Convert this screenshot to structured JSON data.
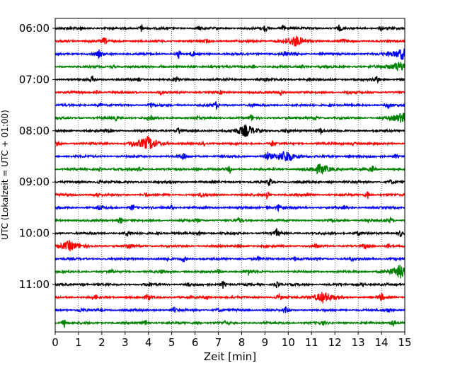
{
  "chart_data": {
    "type": "line",
    "title": "",
    "xlabel": "Zeit  [min]",
    "ylabel": "UTC (Lokalzeit = UTC + 01:00)",
    "xlim": [
      0,
      15
    ],
    "x_ticks": [
      "0",
      "1",
      "2",
      "3",
      "4",
      "5",
      "6",
      "7",
      "8",
      "9",
      "10",
      "11",
      "12",
      "13",
      "14",
      "15"
    ],
    "y_ticks": [
      {
        "label": "06:00",
        "trace": 0
      },
      {
        "label": "07:00",
        "trace": 4
      },
      {
        "label": "08:00",
        "trace": 8
      },
      {
        "label": "09:00",
        "trace": 12
      },
      {
        "label": "10:00",
        "trace": 16
      },
      {
        "label": "11:00",
        "trace": 20
      }
    ],
    "grid": "vertical dotted",
    "trace_interval_min": 15,
    "trace_count": 24,
    "colors": [
      "#000000",
      "#ff0000",
      "#0000ff",
      "#008000"
    ],
    "events": [
      [
        [
          3.7,
          1.0
        ],
        [
          9.0,
          1.0
        ],
        [
          9.8,
          1.2
        ],
        [
          12.2,
          0.9
        ],
        [
          1.1,
          0.5
        ],
        [
          6.2,
          0.5
        ],
        [
          14.0,
          0.6
        ]
      ],
      [
        [
          2.1,
          0.9
        ],
        [
          10.3,
          1.3
        ],
        [
          12.4,
          0.5
        ],
        [
          1.5,
          0.5
        ],
        [
          6.5,
          0.4
        ]
      ],
      [
        [
          1.9,
          1.1
        ],
        [
          5.3,
          1.2
        ],
        [
          5.9,
          0.8
        ],
        [
          9.8,
          0.8
        ],
        [
          14.9,
          1.5
        ],
        [
          10.2,
          0.5
        ]
      ],
      [
        [
          2.5,
          0.5
        ],
        [
          4.6,
          0.5
        ],
        [
          6.7,
          0.5
        ],
        [
          10.6,
          0.5
        ],
        [
          14.8,
          1.4
        ],
        [
          8.5,
          0.4
        ]
      ],
      [
        [
          1.6,
          0.9
        ],
        [
          5.2,
          0.6
        ],
        [
          9.0,
          0.6
        ],
        [
          13.8,
          1.1
        ],
        [
          3.6,
          0.4
        ],
        [
          10.9,
          0.4
        ]
      ],
      [
        [
          1.8,
          0.5
        ],
        [
          4.5,
          0.5
        ],
        [
          9.7,
          0.9
        ],
        [
          12.6,
          0.6
        ],
        [
          7.1,
          0.4
        ]
      ],
      [
        [
          1.9,
          0.5
        ],
        [
          4.1,
          0.9
        ],
        [
          6.9,
          0.9
        ],
        [
          8.5,
          0.5
        ],
        [
          11.8,
          0.5
        ],
        [
          14.3,
          0.8
        ]
      ],
      [
        [
          2.6,
          0.5
        ],
        [
          4.1,
          0.9
        ],
        [
          8.4,
          0.8
        ],
        [
          11.2,
          0.5
        ],
        [
          14.9,
          1.3
        ],
        [
          6.1,
          0.4
        ]
      ],
      [
        [
          5.3,
          1.1
        ],
        [
          8.2,
          1.5
        ],
        [
          11.4,
          0.9
        ],
        [
          2.3,
          0.4
        ],
        [
          9.9,
          0.4
        ]
      ],
      [
        [
          0.1,
          1.1
        ],
        [
          4.0,
          1.8
        ],
        [
          9.3,
          0.9
        ],
        [
          12.8,
          0.5
        ],
        [
          3.3,
          0.5
        ],
        [
          6.4,
          0.4
        ]
      ],
      [
        [
          5.5,
          1.1
        ],
        [
          9.1,
          1.1
        ],
        [
          9.9,
          1.6
        ],
        [
          12.6,
          0.6
        ],
        [
          14.6,
          0.6
        ]
      ],
      [
        [
          3.6,
          1.0
        ],
        [
          7.5,
          0.9
        ],
        [
          11.4,
          1.3
        ],
        [
          13.6,
          1.0
        ],
        [
          1.9,
          0.4
        ],
        [
          6.1,
          0.4
        ]
      ],
      [
        [
          1.9,
          0.5
        ],
        [
          9.2,
          1.1
        ],
        [
          11.8,
          0.6
        ],
        [
          14.4,
          0.6
        ],
        [
          4.9,
          0.4
        ]
      ],
      [
        [
          1.8,
          0.9
        ],
        [
          3.9,
          0.6
        ],
        [
          6.3,
          0.6
        ],
        [
          9.1,
          1.2
        ],
        [
          13.4,
          1.2
        ],
        [
          10.8,
          0.5
        ]
      ],
      [
        [
          1.9,
          0.8
        ],
        [
          3.3,
          0.9
        ],
        [
          5.0,
          0.6
        ],
        [
          9.6,
          1.2
        ],
        [
          12.4,
          0.5
        ],
        [
          9.1,
          0.5
        ]
      ],
      [
        [
          2.8,
          1.0
        ],
        [
          6.1,
          0.5
        ],
        [
          7.9,
          0.6
        ],
        [
          11.8,
          0.5
        ],
        [
          13.4,
          0.6
        ],
        [
          14.4,
          0.8
        ]
      ],
      [
        [
          3.1,
          0.8
        ],
        [
          4.4,
          0.5
        ],
        [
          6.2,
          0.7
        ],
        [
          9.5,
          1.1
        ],
        [
          13.0,
          0.6
        ],
        [
          14.8,
          1.0
        ]
      ],
      [
        [
          0.6,
          1.3
        ],
        [
          3.2,
          0.9
        ],
        [
          7.9,
          0.5
        ],
        [
          11.2,
          0.5
        ],
        [
          13.3,
          0.5
        ],
        [
          14.3,
          0.8
        ]
      ],
      [
        [
          4.8,
          0.6
        ],
        [
          5.5,
          1.0
        ],
        [
          8.7,
          0.5
        ],
        [
          10.3,
          0.6
        ],
        [
          12.7,
          0.5
        ]
      ],
      [
        [
          2.4,
          0.5
        ],
        [
          4.6,
          0.6
        ],
        [
          7.0,
          0.5
        ],
        [
          8.3,
          0.9
        ],
        [
          14.8,
          1.6
        ]
      ],
      [
        [
          4.0,
          0.6
        ],
        [
          5.7,
          0.5
        ],
        [
          7.2,
          1.1
        ],
        [
          9.5,
          0.8
        ],
        [
          13.2,
          0.6
        ],
        [
          1.2,
          0.4
        ]
      ],
      [
        [
          1.7,
          0.5
        ],
        [
          4.0,
          0.9
        ],
        [
          6.5,
          0.6
        ],
        [
          9.6,
          0.9
        ],
        [
          11.5,
          1.4
        ],
        [
          14.0,
          1.0
        ]
      ],
      [
        [
          1.1,
          0.5
        ],
        [
          5.1,
          0.6
        ],
        [
          7.0,
          0.5
        ],
        [
          9.9,
          1.0
        ],
        [
          14.3,
          0.7
        ]
      ],
      [
        [
          0.4,
          1.2
        ],
        [
          3.9,
          0.9
        ],
        [
          6.1,
          0.7
        ],
        [
          7.3,
          0.5
        ],
        [
          11.5,
          0.5
        ],
        [
          14.5,
          1.0
        ]
      ]
    ]
  }
}
